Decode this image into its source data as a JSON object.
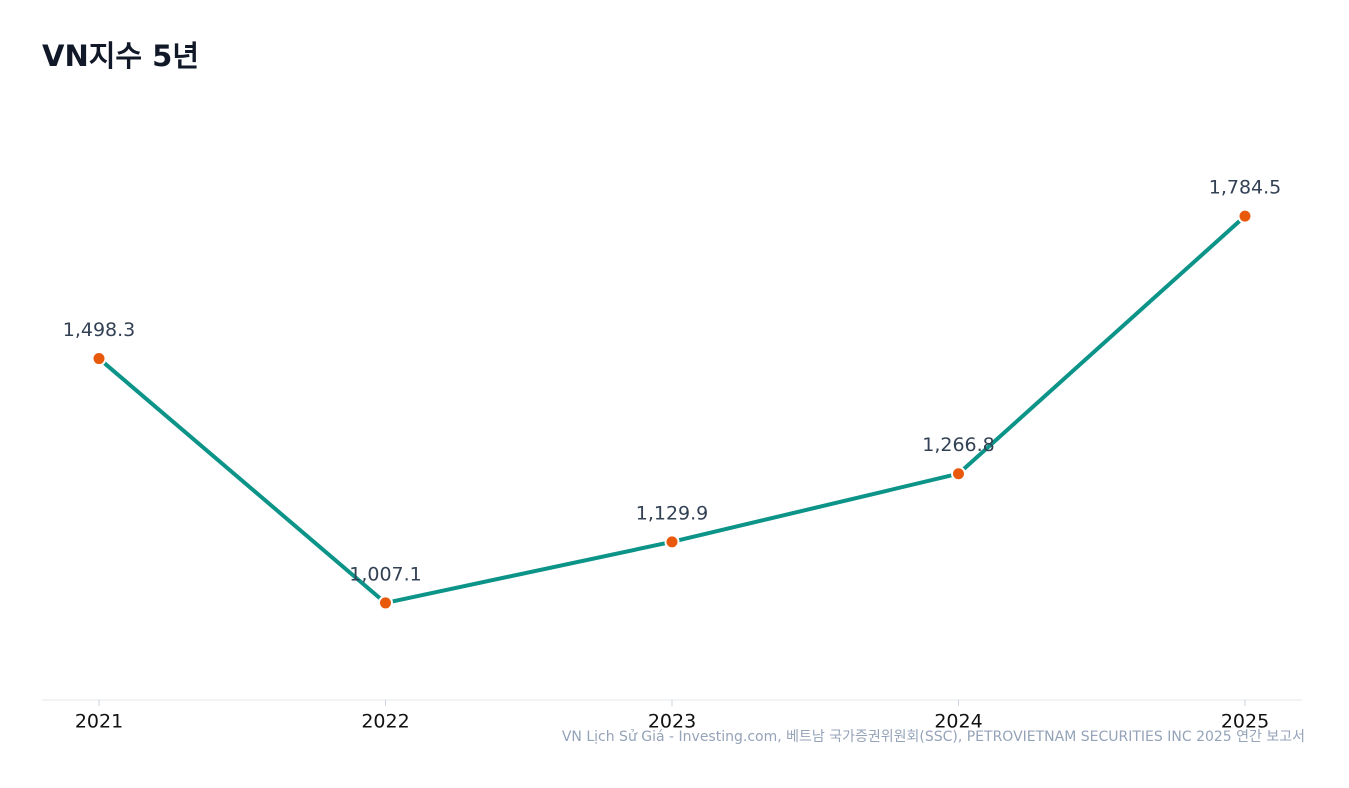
{
  "chart_data": {
    "type": "line",
    "title": "VN지수 5년",
    "categories": [
      "2021",
      "2022",
      "2023",
      "2024",
      "2025"
    ],
    "series": [
      {
        "name": "VN지수",
        "color": "#0d9488",
        "marker_color": "#e8590c",
        "values": [
          1498.3,
          1007.1,
          1129.9,
          1266.8,
          1784.5
        ],
        "value_labels": [
          "1,498.3",
          "1,007.1",
          "1,129.9",
          "1,266.8",
          "1,784.5"
        ]
      }
    ],
    "ylim": [
      812,
      2018
    ],
    "source": "VN Lịch Sử Giá - Investing.com, 베트남 국가증권위원회(SSC), PETROVIETNAM SECURITIES INC 2025 연간 보고서"
  }
}
